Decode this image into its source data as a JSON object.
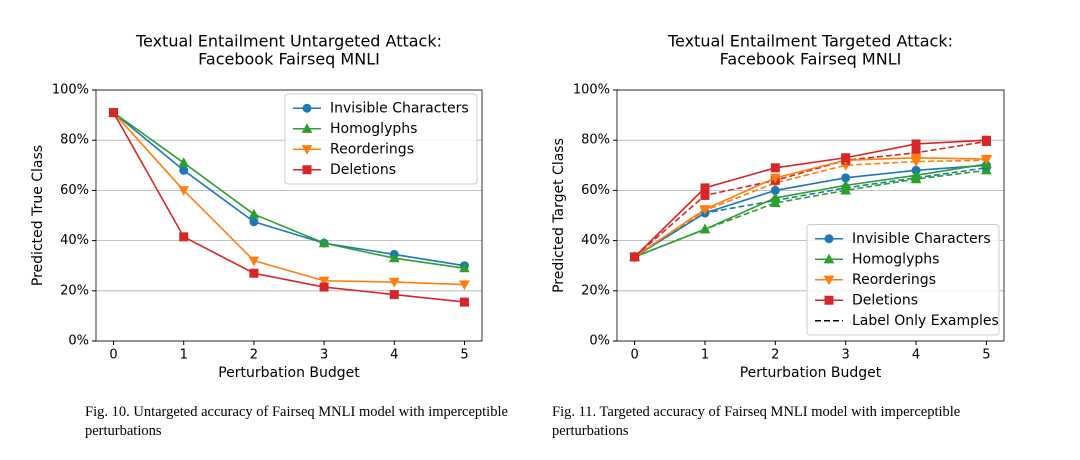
{
  "chart_data": [
    {
      "type": "line",
      "title": [
        "Textual Entailment Untargeted Attack:",
        "Facebook Fairseq MNLI"
      ],
      "x_label": "Perturbation Budget",
      "y_label": "Predicted True Class",
      "x": [
        0,
        1,
        2,
        3,
        4,
        5
      ],
      "xlim": [
        -0.25,
        5.25
      ],
      "xticks": [
        0,
        1,
        2,
        3,
        4,
        5
      ],
      "ylim": [
        0,
        100
      ],
      "yticks": [
        {
          "value": 0,
          "label": "0%"
        },
        {
          "value": 20,
          "label": "20%"
        },
        {
          "value": 40,
          "label": "40%"
        },
        {
          "value": 60,
          "label": "60%"
        },
        {
          "value": 80,
          "label": "80%"
        },
        {
          "value": 100,
          "label": "100%"
        }
      ],
      "grid": true,
      "legend": "upper right",
      "series": [
        {
          "name": "Invisible Characters",
          "color": "#1f77b4",
          "marker": "circle",
          "values": [
            91,
            68,
            47.5,
            39,
            34.5,
            30
          ]
        },
        {
          "name": "Homoglyphs",
          "color": "#2ca02c",
          "marker": "triangle-up",
          "values": [
            91,
            71,
            50.5,
            39,
            33,
            29
          ]
        },
        {
          "name": "Reorderings",
          "color": "#ff7f0e",
          "marker": "triangle-down",
          "values": [
            91,
            60,
            32,
            24,
            23.5,
            22.5
          ]
        },
        {
          "name": "Deletions",
          "color": "#d62728",
          "marker": "square",
          "values": [
            91,
            41.5,
            27,
            21.5,
            18.5,
            15.5
          ]
        }
      ],
      "caption": "Fig. 10.  Untargeted accuracy of Fairseq MNLI model with imperceptible perturbations"
    },
    {
      "type": "line",
      "title": [
        "Textual Entailment Targeted Attack:",
        "Facebook Fairseq MNLI"
      ],
      "x_label": "Perturbation Budget",
      "y_label": "Predicted Target Class",
      "x": [
        0,
        1,
        2,
        3,
        4,
        5
      ],
      "xlim": [
        -0.25,
        5.25
      ],
      "xticks": [
        0,
        1,
        2,
        3,
        4,
        5
      ],
      "ylim": [
        0,
        100
      ],
      "yticks": [
        {
          "value": 0,
          "label": "0%"
        },
        {
          "value": 20,
          "label": "20%"
        },
        {
          "value": 40,
          "label": "40%"
        },
        {
          "value": 60,
          "label": "60%"
        },
        {
          "value": 80,
          "label": "80%"
        },
        {
          "value": 100,
          "label": "100%"
        }
      ],
      "grid": true,
      "legend": "lower right",
      "dashed_legend": "Label Only Examples",
      "series": [
        {
          "color": "#1f77b4",
          "marker": "circle",
          "dashed": true,
          "values": [
            33.5,
            51,
            56,
            61,
            65,
            69
          ]
        },
        {
          "color": "#2ca02c",
          "marker": "triangle-up",
          "dashed": true,
          "values": [
            33.5,
            44.5,
            55,
            60,
            64.5,
            68
          ]
        },
        {
          "color": "#ff7f0e",
          "marker": "triangle-down",
          "dashed": true,
          "values": [
            33.5,
            52,
            63,
            70,
            71.5,
            72
          ]
        },
        {
          "color": "#d62728",
          "marker": "square",
          "dashed": true,
          "values": [
            33.5,
            58,
            64,
            72,
            75,
            79.5
          ]
        },
        {
          "name": "Invisible Characters",
          "color": "#1f77b4",
          "marker": "circle",
          "values": [
            33.5,
            51,
            60,
            65,
            68,
            70
          ]
        },
        {
          "name": "Homoglyphs",
          "color": "#2ca02c",
          "marker": "triangle-up",
          "values": [
            33.5,
            44.5,
            57,
            62,
            66,
            70.5
          ]
        },
        {
          "name": "Reorderings",
          "color": "#ff7f0e",
          "marker": "triangle-down",
          "values": [
            33.5,
            52.5,
            65,
            72,
            73,
            72.5
          ]
        },
        {
          "name": "Deletions",
          "color": "#d62728",
          "marker": "square",
          "values": [
            33.5,
            61,
            69,
            73,
            78.5,
            80
          ]
        }
      ],
      "caption": "Fig. 11.  Targeted accuracy of Fairseq MNLI model with imperceptible perturbations"
    }
  ]
}
